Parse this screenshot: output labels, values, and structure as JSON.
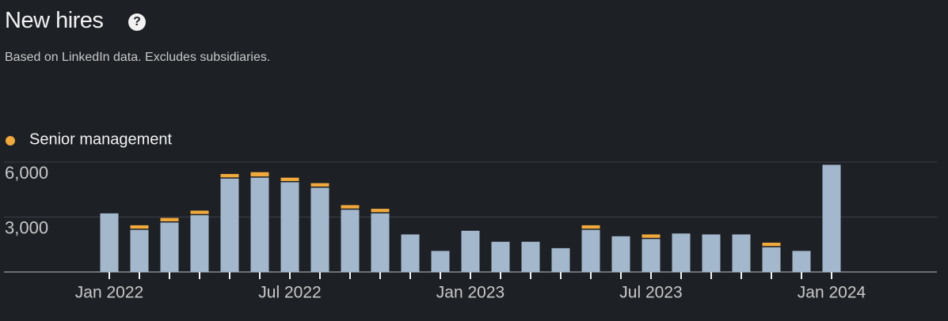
{
  "chart_data": {
    "type": "bar",
    "title": "New hires",
    "subtitle": "Based on LinkedIn data. Excludes subsidiaries.",
    "categories": [
      "Jan 2022",
      null,
      null,
      null,
      null,
      null,
      "Jul 2022",
      null,
      null,
      null,
      null,
      null,
      "Jan 2023",
      null,
      null,
      null,
      null,
      null,
      "Jul 2023",
      null,
      null,
      null,
      null,
      null,
      "Jan 2024"
    ],
    "series": [
      {
        "color": "#a3b8cc",
        "values": [
          3200,
          2300,
          2700,
          3100,
          5100,
          5150,
          4900,
          4600,
          3400,
          3200,
          2050,
          1150,
          2250,
          1650,
          1650,
          1300,
          2300,
          1950,
          1800,
          2100,
          2050,
          2050,
          1350,
          1150,
          5850
        ]
      },
      {
        "name": "Senior management",
        "color": "#f0a93a",
        "values": [
          0,
          250,
          250,
          250,
          250,
          300,
          250,
          250,
          250,
          250,
          0,
          0,
          0,
          0,
          0,
          0,
          250,
          0,
          250,
          0,
          0,
          0,
          250,
          0,
          0
        ]
      }
    ],
    "stacked": true,
    "ylim": [
      0,
      6000
    ],
    "yticks": [
      {
        "value": 3000,
        "label": "3,000"
      },
      {
        "value": 6000,
        "label": "6,000"
      }
    ],
    "grid": true
  }
}
